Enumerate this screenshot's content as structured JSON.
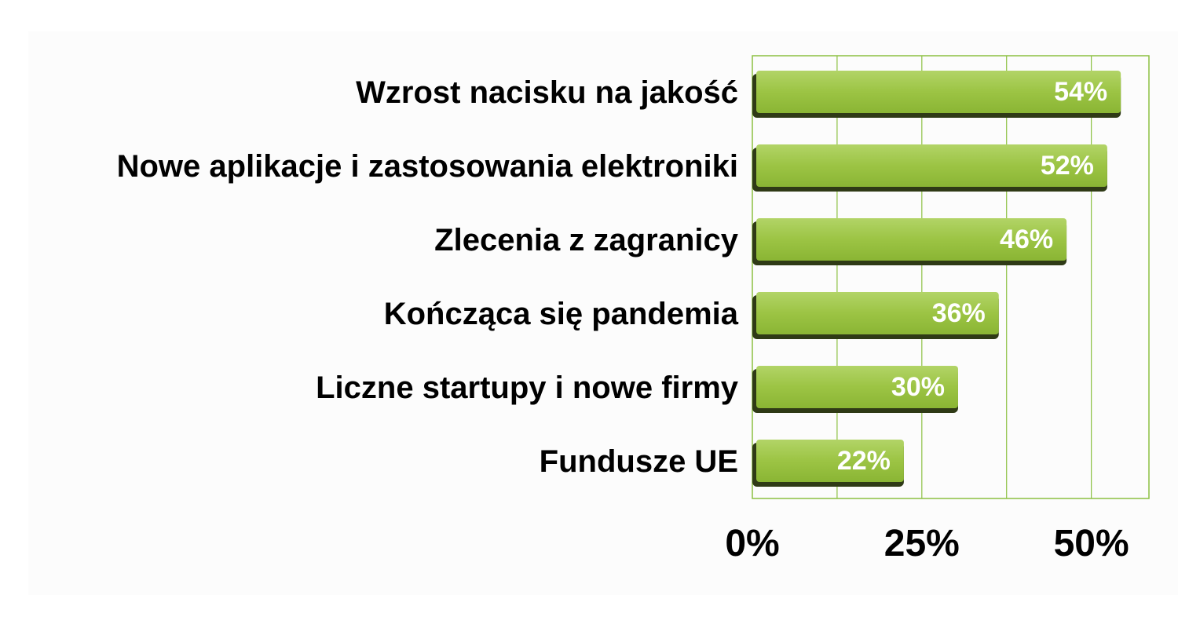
{
  "chart_data": {
    "type": "bar",
    "orientation": "horizontal",
    "categories": [
      "Wzrost nacisku na jakość",
      "Nowe aplikacje i zastosowania elektroniki",
      "Zlecenia z zagranicy",
      "Kończąca się pandemia",
      "Liczne startupy i nowe firmy",
      "Fundusze UE"
    ],
    "values": [
      54,
      52,
      46,
      36,
      30,
      22
    ],
    "value_labels": [
      "54%",
      "52%",
      "46%",
      "36%",
      "30%",
      "22%"
    ],
    "xlim": [
      0,
      58.5
    ],
    "ticks": [
      0,
      25,
      50
    ],
    "tick_labels": [
      "0%",
      "25%",
      "50%"
    ],
    "grid": true,
    "bar_color": "#96c03c",
    "bar_shadow_color": "#2f3a16",
    "grid_color": "#8cc042",
    "label_color": "#000000",
    "value_label_color": "#ffffff"
  }
}
